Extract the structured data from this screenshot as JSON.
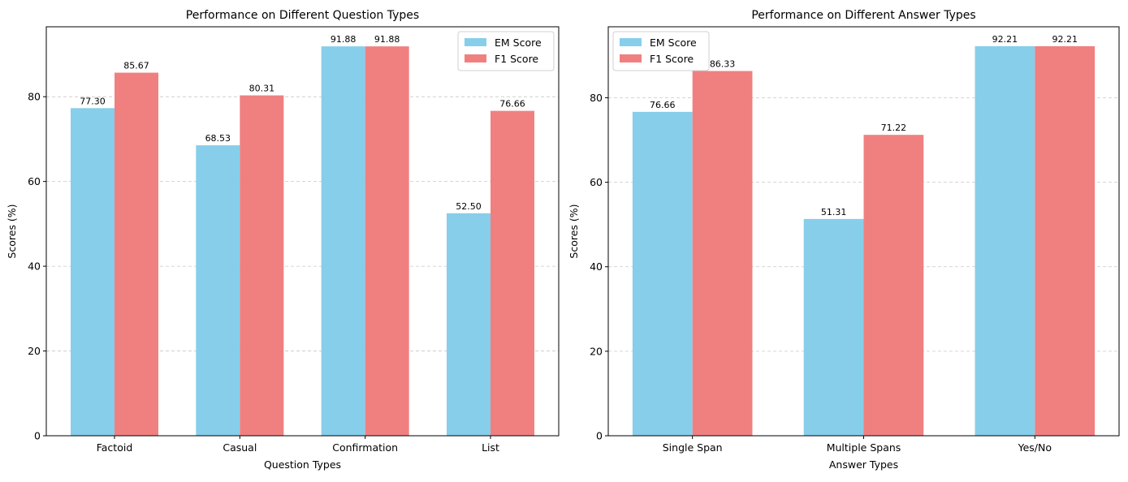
{
  "chart_data": [
    {
      "type": "bar",
      "title": "Performance on Different Question Types",
      "xlabel": "Question Types",
      "ylabel": "Scores (%)",
      "categories": [
        "Factoid",
        "Casual",
        "Confirmation",
        "List"
      ],
      "series": [
        {
          "name": "EM Score",
          "values": [
            77.3,
            68.53,
            91.88,
            52.5
          ],
          "labels": [
            "77.30",
            "68.53",
            "91.88",
            "52.50"
          ]
        },
        {
          "name": "F1 Score",
          "values": [
            85.67,
            80.31,
            91.88,
            76.66
          ],
          "labels": [
            "85.67",
            "80.31",
            "91.88",
            "76.66"
          ]
        }
      ],
      "ylim": [
        0,
        96.5
      ],
      "yticks": [
        0,
        20,
        40,
        60,
        80
      ],
      "grid": "y, dashed",
      "legend": "upper right"
    },
    {
      "type": "bar",
      "title": "Performance on Different Answer Types",
      "xlabel": "Answer Types",
      "ylabel": "Scores (%)",
      "categories": [
        "Single Span",
        "Multiple Spans",
        "Yes/No"
      ],
      "series": [
        {
          "name": "EM Score",
          "values": [
            76.66,
            51.31,
            92.21
          ],
          "labels": [
            "76.66",
            "51.31",
            "92.21"
          ]
        },
        {
          "name": "F1 Score",
          "values": [
            86.33,
            71.22,
            92.21
          ],
          "labels": [
            "86.33",
            "71.22",
            "92.21"
          ]
        }
      ],
      "ylim": [
        0,
        96.8
      ],
      "yticks": [
        0,
        20,
        40,
        60,
        80
      ],
      "grid": "y, dashed",
      "legend": "upper left"
    }
  ],
  "colors": {
    "em": "#87CEEB",
    "f1": "#F08080",
    "grid": "#c8c8c8",
    "axis": "#000000"
  }
}
